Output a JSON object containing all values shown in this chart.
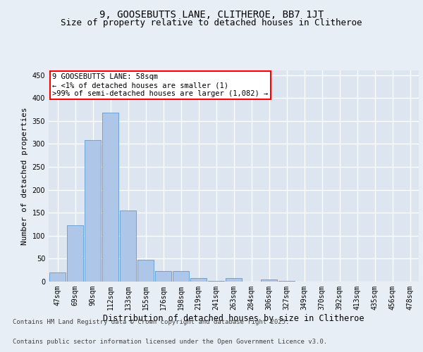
{
  "title": "9, GOOSEBUTTS LANE, CLITHEROE, BB7 1JT",
  "subtitle": "Size of property relative to detached houses in Clitheroe",
  "xlabel": "Distribution of detached houses by size in Clitheroe",
  "ylabel": "Number of detached properties",
  "categories": [
    "47sqm",
    "69sqm",
    "90sqm",
    "112sqm",
    "133sqm",
    "155sqm",
    "176sqm",
    "198sqm",
    "219sqm",
    "241sqm",
    "263sqm",
    "284sqm",
    "306sqm",
    "327sqm",
    "349sqm",
    "370sqm",
    "392sqm",
    "413sqm",
    "435sqm",
    "456sqm",
    "478sqm"
  ],
  "values": [
    20,
    122,
    308,
    368,
    155,
    48,
    23,
    23,
    8,
    2,
    8,
    0,
    5,
    2,
    0,
    0,
    0,
    0,
    0,
    0,
    0
  ],
  "bar_color": "#aec6e8",
  "bar_edge_color": "#5b9bd5",
  "annotation_text": "9 GOOSEBUTTS LANE: 58sqm\n← <1% of detached houses are smaller (1)\n>99% of semi-detached houses are larger (1,082) →",
  "ylim": [
    0,
    460
  ],
  "yticks": [
    0,
    50,
    100,
    150,
    200,
    250,
    300,
    350,
    400,
    450
  ],
  "bg_color": "#e8eef5",
  "plot_bg_color": "#dde6f0",
  "footer_line1": "Contains HM Land Registry data © Crown copyright and database right 2025.",
  "footer_line2": "Contains public sector information licensed under the Open Government Licence v3.0.",
  "title_fontsize": 10,
  "subtitle_fontsize": 9,
  "tick_fontsize": 7,
  "xlabel_fontsize": 8.5,
  "ylabel_fontsize": 8,
  "footer_fontsize": 6.5,
  "ann_fontsize": 7.5
}
